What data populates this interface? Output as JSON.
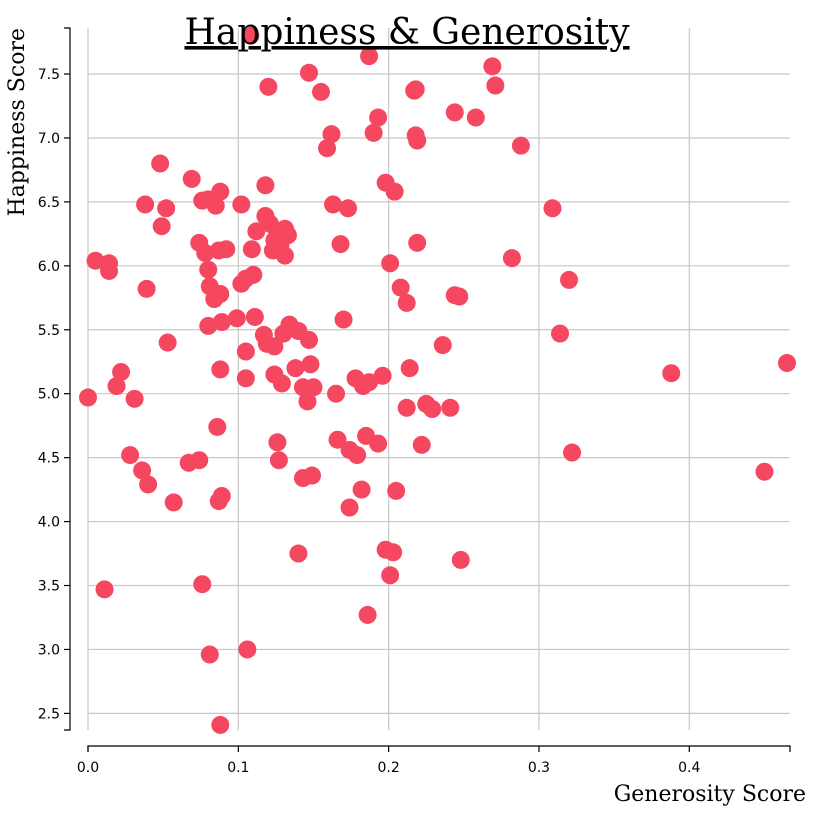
{
  "chart_data": {
    "type": "scatter",
    "title": "Happiness & Generosity",
    "xlabel": "Generosity Score",
    "ylabel": "Happiness Score",
    "xlim": [
      0,
      0.467
    ],
    "ylim": [
      2.37,
      7.86
    ],
    "x_ticks": [
      {
        "value": 0.0,
        "label": "0.0"
      },
      {
        "value": 0.1,
        "label": "0.1"
      },
      {
        "value": 0.2,
        "label": "0.2"
      },
      {
        "value": 0.3,
        "label": "0.3"
      },
      {
        "value": 0.4,
        "label": "0.4"
      }
    ],
    "y_ticks": [
      {
        "value": 2.5,
        "label": "2.5"
      },
      {
        "value": 3.0,
        "label": "3.0"
      },
      {
        "value": 3.5,
        "label": "3.5"
      },
      {
        "value": 4.0,
        "label": "4.0"
      },
      {
        "value": 4.5,
        "label": "4.5"
      },
      {
        "value": 5.0,
        "label": "5.0"
      },
      {
        "value": 5.5,
        "label": "5.5"
      },
      {
        "value": 6.0,
        "label": "6.0"
      },
      {
        "value": 6.5,
        "label": "6.5"
      },
      {
        "value": 7.0,
        "label": "7.0"
      },
      {
        "value": 7.5,
        "label": "7.5"
      }
    ],
    "grid": true,
    "point_color": "#f5475f",
    "points": [
      [
        0.108,
        7.8
      ],
      [
        0.187,
        7.64
      ],
      [
        0.147,
        7.51
      ],
      [
        0.12,
        7.4
      ],
      [
        0.155,
        7.36
      ],
      [
        0.217,
        7.37
      ],
      [
        0.218,
        7.38
      ],
      [
        0.269,
        7.56
      ],
      [
        0.271,
        7.41
      ],
      [
        0.244,
        7.2
      ],
      [
        0.258,
        7.16
      ],
      [
        0.193,
        7.16
      ],
      [
        0.162,
        7.03
      ],
      [
        0.19,
        7.04
      ],
      [
        0.218,
        7.02
      ],
      [
        0.219,
        6.98
      ],
      [
        0.159,
        6.92
      ],
      [
        0.288,
        6.94
      ],
      [
        0.048,
        6.8
      ],
      [
        0.069,
        6.68
      ],
      [
        0.118,
        6.63
      ],
      [
        0.198,
        6.65
      ],
      [
        0.204,
        6.58
      ],
      [
        0.088,
        6.58
      ],
      [
        0.08,
        6.52
      ],
      [
        0.076,
        6.51
      ],
      [
        0.038,
        6.48
      ],
      [
        0.052,
        6.45
      ],
      [
        0.085,
        6.47
      ],
      [
        0.102,
        6.48
      ],
      [
        0.163,
        6.48
      ],
      [
        0.173,
        6.45
      ],
      [
        0.309,
        6.45
      ],
      [
        0.118,
        6.39
      ],
      [
        0.121,
        6.33
      ],
      [
        0.112,
        6.27
      ],
      [
        0.049,
        6.31
      ],
      [
        0.131,
        6.29
      ],
      [
        0.126,
        6.26
      ],
      [
        0.133,
        6.24
      ],
      [
        0.124,
        6.2
      ],
      [
        0.168,
        6.17
      ],
      [
        0.219,
        6.18
      ],
      [
        0.074,
        6.18
      ],
      [
        0.128,
        6.16
      ],
      [
        0.092,
        6.13
      ],
      [
        0.087,
        6.12
      ],
      [
        0.109,
        6.13
      ],
      [
        0.123,
        6.12
      ],
      [
        0.078,
        6.1
      ],
      [
        0.131,
        6.08
      ],
      [
        0.282,
        6.06
      ],
      [
        0.005,
        6.04
      ],
      [
        0.014,
        6.02
      ],
      [
        0.201,
        6.02
      ],
      [
        0.014,
        5.96
      ],
      [
        0.08,
        5.97
      ],
      [
        0.11,
        5.93
      ],
      [
        0.105,
        5.9
      ],
      [
        0.102,
        5.86
      ],
      [
        0.081,
        5.84
      ],
      [
        0.32,
        5.89
      ],
      [
        0.208,
        5.83
      ],
      [
        0.039,
        5.82
      ],
      [
        0.088,
        5.78
      ],
      [
        0.084,
        5.74
      ],
      [
        0.244,
        5.77
      ],
      [
        0.247,
        5.76
      ],
      [
        0.212,
        5.71
      ],
      [
        0.111,
        5.6
      ],
      [
        0.099,
        5.59
      ],
      [
        0.089,
        5.56
      ],
      [
        0.17,
        5.58
      ],
      [
        0.08,
        5.53
      ],
      [
        0.134,
        5.54
      ],
      [
        0.14,
        5.49
      ],
      [
        0.13,
        5.47
      ],
      [
        0.117,
        5.46
      ],
      [
        0.147,
        5.42
      ],
      [
        0.314,
        5.47
      ],
      [
        0.119,
        5.39
      ],
      [
        0.124,
        5.37
      ],
      [
        0.053,
        5.4
      ],
      [
        0.236,
        5.38
      ],
      [
        0.105,
        5.33
      ],
      [
        0.138,
        5.2
      ],
      [
        0.148,
        5.23
      ],
      [
        0.088,
        5.19
      ],
      [
        0.214,
        5.2
      ],
      [
        0.124,
        5.15
      ],
      [
        0.105,
        5.12
      ],
      [
        0.178,
        5.12
      ],
      [
        0.196,
        5.14
      ],
      [
        0.388,
        5.16
      ],
      [
        0.465,
        5.24
      ],
      [
        0.022,
        5.17
      ],
      [
        0.129,
        5.08
      ],
      [
        0.019,
        5.06
      ],
      [
        0.143,
        5.05
      ],
      [
        0.15,
        5.05
      ],
      [
        0.183,
        5.06
      ],
      [
        0.187,
        5.09
      ],
      [
        0.165,
        5.0
      ],
      [
        0.0,
        4.97
      ],
      [
        0.031,
        4.96
      ],
      [
        0.146,
        4.94
      ],
      [
        0.212,
        4.89
      ],
      [
        0.225,
        4.92
      ],
      [
        0.229,
        4.88
      ],
      [
        0.241,
        4.89
      ],
      [
        0.086,
        4.74
      ],
      [
        0.166,
        4.64
      ],
      [
        0.185,
        4.67
      ],
      [
        0.126,
        4.62
      ],
      [
        0.193,
        4.61
      ],
      [
        0.222,
        4.6
      ],
      [
        0.174,
        4.56
      ],
      [
        0.179,
        4.52
      ],
      [
        0.322,
        4.54
      ],
      [
        0.028,
        4.52
      ],
      [
        0.067,
        4.46
      ],
      [
        0.074,
        4.48
      ],
      [
        0.127,
        4.48
      ],
      [
        0.036,
        4.4
      ],
      [
        0.143,
        4.34
      ],
      [
        0.149,
        4.36
      ],
      [
        0.45,
        4.39
      ],
      [
        0.04,
        4.29
      ],
      [
        0.182,
        4.25
      ],
      [
        0.205,
        4.24
      ],
      [
        0.089,
        4.2
      ],
      [
        0.087,
        4.16
      ],
      [
        0.057,
        4.15
      ],
      [
        0.174,
        4.11
      ],
      [
        0.14,
        3.75
      ],
      [
        0.198,
        3.78
      ],
      [
        0.203,
        3.76
      ],
      [
        0.248,
        3.7
      ],
      [
        0.201,
        3.58
      ],
      [
        0.076,
        3.51
      ],
      [
        0.011,
        3.47
      ],
      [
        0.186,
        3.27
      ],
      [
        0.106,
        3.0
      ],
      [
        0.081,
        2.96
      ],
      [
        0.088,
        2.41
      ]
    ]
  }
}
